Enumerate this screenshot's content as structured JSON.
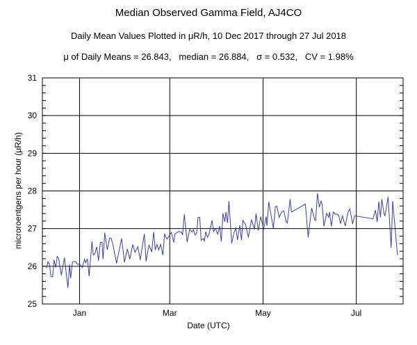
{
  "chart_data": {
    "type": "line",
    "title": "Median Observed Gamma Field, AJ4CO",
    "subtitle": "Daily Mean Values Plotted in μR/h, 10 Dec 2017 through 27 Jul 2018",
    "stats_line": "μ of Daily Means = 26.843,   median = 26.884,   σ = 0.532,   CV = 1.98%",
    "xlabel": "Date (UTC)",
    "ylabel": "microroentgens per hour (μR/h)",
    "x_unit": "days since 10 Dec 2017",
    "xlim": [
      -2.3,
      233.6
    ],
    "ylim": [
      25,
      31
    ],
    "yticks": [
      25,
      26,
      27,
      28,
      29,
      30,
      31
    ],
    "xticks": [
      {
        "label": "Jan",
        "x": 22
      },
      {
        "label": "Mar",
        "x": 81
      },
      {
        "label": "May",
        "x": 142
      },
      {
        "label": "Jul",
        "x": 203
      }
    ],
    "grid": true,
    "line_color": "#3a3aa8",
    "series": [
      {
        "name": "Daily mean",
        "x": [
          0.3,
          1.4,
          2.3,
          3.3,
          4.4,
          5.3,
          6.4,
          7.4,
          8.3,
          10.1,
          12.1,
          14.4,
          15.5,
          16.2,
          17.4,
          19.2,
          20.5,
          22,
          23.8,
          25.3,
          26,
          27.1,
          28.3,
          30.1,
          31,
          32.1,
          33.2,
          34.4,
          35.6,
          36.7,
          37.4,
          38.5,
          40.1,
          41.7,
          42.7,
          43.8,
          46.2,
          49.5,
          51.4,
          53.3,
          54.9,
          56.8,
          58.3,
          60.1,
          61.7,
          64.4,
          65.5,
          67.4,
          69.2,
          70.5,
          71.5,
          72.6,
          73.8,
          75,
          76.5,
          77.6,
          79.1,
          80.6,
          82.1,
          83.6,
          84.4,
          84.9,
          86.7,
          88.5,
          89.4,
          90.5,
          92.4,
          94,
          95.5,
          96.5,
          97.6,
          98.5,
          99.5,
          100.6,
          101.5,
          103,
          103.6,
          104.5,
          105.6,
          106.7,
          108.6,
          109.7,
          110.9,
          112.4,
          113.6,
          114.7,
          115.8,
          117,
          117.7,
          118.8,
          119.7,
          121.5,
          123,
          124.2,
          125.3,
          126.8,
          127.9,
          128.8,
          130.6,
          132.4,
          134.4,
          136.4,
          137.4,
          138.9,
          140.5,
          142.4,
          144,
          144.5,
          145.8,
          147.3,
          148.8,
          150,
          151,
          152.6,
          154.1,
          155.6,
          157.1,
          157.9,
          159.7,
          160.6,
          169.7,
          171.5,
          173.8,
          175.8,
          176.4,
          177.6,
          178.8,
          179.9,
          180.6,
          181.8,
          183.6,
          184.9,
          185.5,
          186.7,
          187.9,
          189.4,
          190.5,
          191.5,
          192.7,
          193.9,
          195.8,
          197.6,
          198.8,
          200.6,
          201.8,
          213.9,
          215.5,
          216.7,
          217.7,
          218.8,
          219.7,
          221.2,
          221.8,
          223.8,
          225.8,
          226.8,
          229.9
        ],
        "y": [
          25.95,
          26.12,
          26.06,
          25.73,
          25.72,
          26.17,
          25.97,
          26.26,
          26.21,
          25.76,
          26.23,
          25.43,
          26.05,
          25.68,
          26.12,
          26.13,
          26.06,
          26.05,
          25.97,
          26.19,
          26.09,
          26.2,
          25.74,
          26.66,
          26.3,
          26.34,
          26.52,
          26.15,
          26.63,
          26.64,
          26.19,
          26.89,
          26.44,
          26.75,
          26.74,
          26.58,
          26.08,
          26.74,
          26.11,
          26.46,
          26.19,
          26.58,
          26.37,
          26.52,
          26.17,
          26.86,
          26.13,
          26.56,
          26.38,
          26.91,
          26.43,
          26.58,
          26.43,
          26.58,
          26.3,
          26.85,
          26.72,
          26.81,
          26.9,
          26.63,
          26.86,
          26.87,
          26.92,
          26.91,
          26.83,
          27.38,
          26.64,
          26.98,
          26.91,
          26.97,
          26.83,
          26.87,
          27.3,
          27.3,
          26.69,
          26.74,
          26.66,
          26.92,
          26.77,
          26.85,
          27.22,
          26.92,
          27.01,
          26.85,
          27.07,
          26.66,
          27.41,
          27.18,
          27.44,
          27.15,
          27.73,
          26.61,
          26.89,
          27.01,
          26.7,
          27.09,
          26.69,
          27.22,
          27.1,
          26.77,
          27.24,
          26.98,
          27.4,
          26.95,
          27.32,
          26.98,
          27.32,
          27.07,
          27.71,
          27.35,
          27.01,
          27.58,
          27.6,
          27.3,
          27.44,
          27.47,
          27.18,
          27.15,
          27.78,
          27.44,
          27.65,
          26.77,
          27.55,
          27.23,
          27.22,
          27.94,
          27.57,
          27.73,
          27.66,
          27.06,
          27.41,
          27.3,
          27.44,
          27.06,
          27.44,
          27.38,
          27.38,
          27.35,
          27.13,
          27.34,
          27.07,
          27.44,
          27.52,
          27.12,
          27.34,
          27.26,
          27.49,
          27.18,
          27.72,
          27.3,
          27.78,
          27.38,
          27.34,
          27.84,
          26.49,
          27.73,
          26.3
        ]
      }
    ]
  }
}
